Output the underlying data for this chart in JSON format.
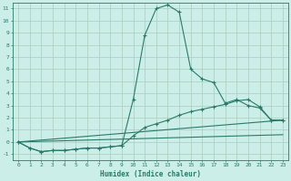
{
  "xlabel": "Humidex (Indice chaleur)",
  "background_color": "#cceee8",
  "grid_color": "#aaccbb",
  "line_color": "#2a7a6a",
  "xlim": [
    -0.5,
    23.5
  ],
  "ylim": [
    -1.5,
    11.5
  ],
  "xticks": [
    0,
    1,
    2,
    3,
    4,
    5,
    6,
    7,
    8,
    9,
    10,
    11,
    12,
    13,
    14,
    15,
    16,
    17,
    18,
    19,
    20,
    21,
    22,
    23
  ],
  "yticks": [
    -1,
    0,
    1,
    2,
    3,
    4,
    5,
    6,
    7,
    8,
    9,
    10,
    11
  ],
  "series": [
    {
      "x": [
        0,
        1,
        2,
        3,
        4,
        5,
        6,
        7,
        8,
        9,
        10,
        11,
        12,
        13,
        14,
        15,
        16,
        17,
        18,
        19,
        20,
        21,
        22,
        23
      ],
      "y": [
        0,
        -0.5,
        -0.8,
        -0.7,
        -0.7,
        -0.6,
        -0.5,
        -0.5,
        -0.4,
        -0.3,
        3.5,
        8.8,
        11.0,
        11.3,
        10.7,
        6.0,
        5.2,
        4.9,
        3.2,
        3.5,
        3.0,
        2.8,
        1.8,
        1.8
      ],
      "marker": true
    },
    {
      "x": [
        0,
        1,
        2,
        3,
        4,
        5,
        6,
        7,
        8,
        9,
        10,
        11,
        12,
        13,
        14,
        15,
        16,
        17,
        18,
        19,
        20,
        21,
        22,
        23
      ],
      "y": [
        0,
        -0.5,
        -0.8,
        -0.7,
        -0.7,
        -0.6,
        -0.5,
        -0.5,
        -0.4,
        -0.3,
        0.5,
        1.2,
        1.5,
        1.8,
        2.2,
        2.5,
        2.7,
        2.9,
        3.1,
        3.4,
        3.5,
        2.9,
        1.8,
        1.8
      ],
      "marker": true
    },
    {
      "x": [
        0,
        23
      ],
      "y": [
        0,
        1.8
      ],
      "marker": false
    },
    {
      "x": [
        0,
        23
      ],
      "y": [
        0,
        0.6
      ],
      "marker": false
    }
  ]
}
